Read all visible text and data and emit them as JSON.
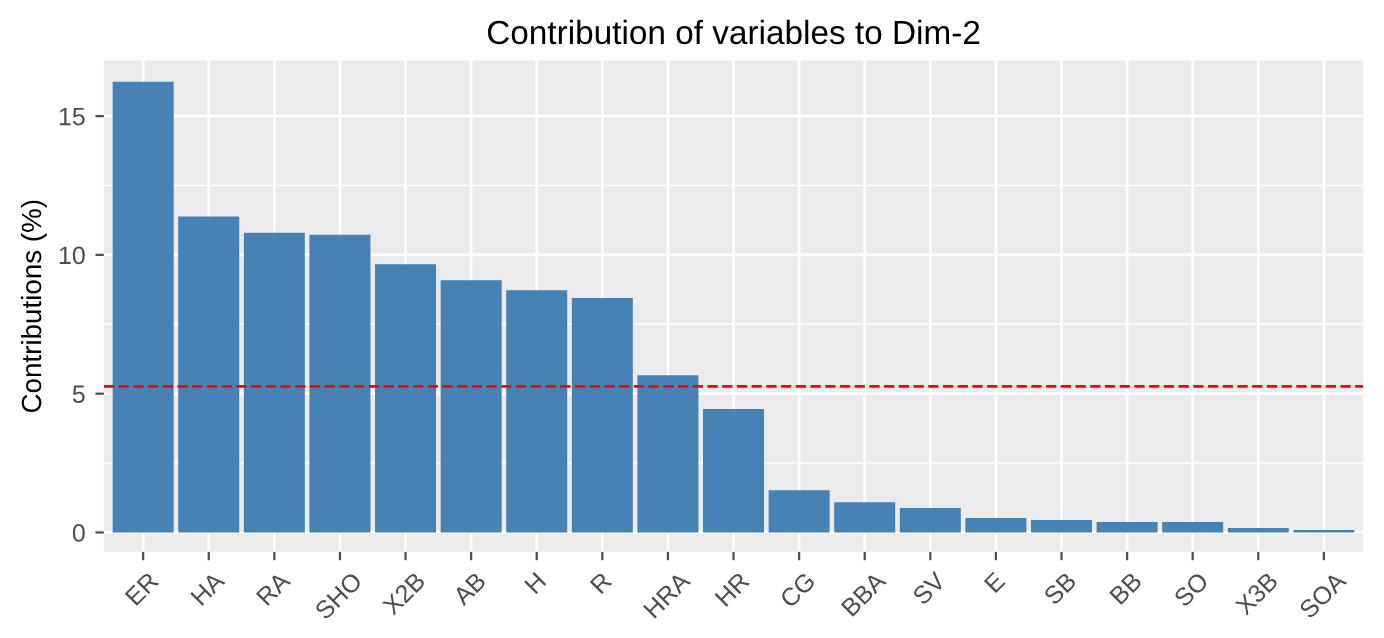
{
  "chart_data": {
    "type": "bar",
    "title": "Contribution of variables to Dim-2",
    "ylabel": "Contributions (%)",
    "categories": [
      "ER",
      "HA",
      "RA",
      "SHO",
      "X2B",
      "AB",
      "H",
      "R",
      "HRA",
      "HR",
      "CG",
      "BBA",
      "SV",
      "E",
      "SB",
      "BB",
      "SO",
      "X3B",
      "SOA"
    ],
    "values": [
      16.24,
      11.38,
      10.8,
      10.73,
      9.66,
      9.09,
      8.73,
      8.45,
      5.66,
      4.45,
      1.52,
      1.09,
      0.88,
      0.52,
      0.45,
      0.38,
      0.38,
      0.16,
      0.09
    ],
    "color": "#4682b4",
    "ylim": [
      -0.7,
      17.0
    ],
    "yticks": [
      0,
      5,
      10,
      15
    ],
    "grid": true,
    "ref_lines": [
      {
        "axis": "y",
        "value": 5.26,
        "color": "#ff0000",
        "line_style": "dashed"
      }
    ]
  }
}
